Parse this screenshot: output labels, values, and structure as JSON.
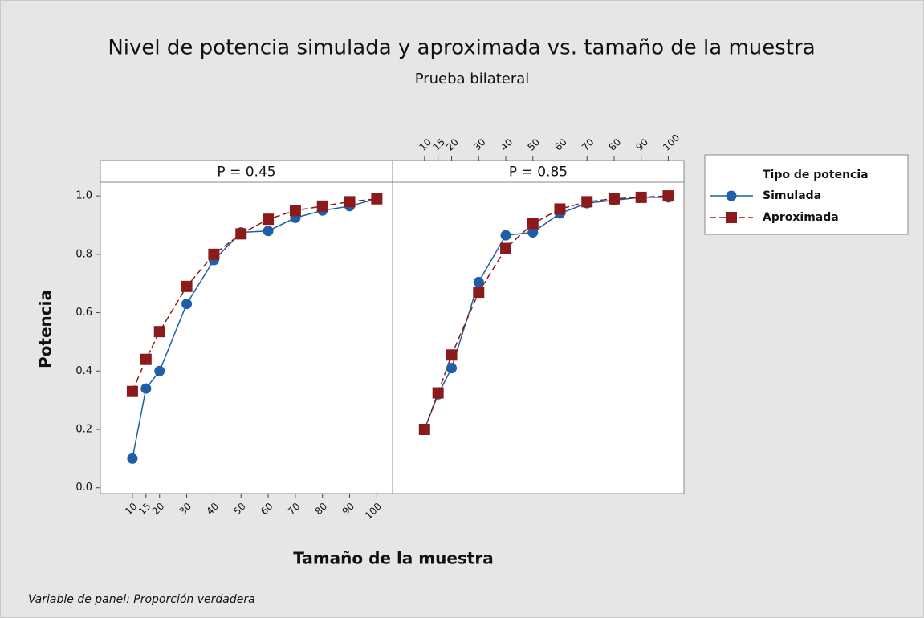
{
  "chart_data": {
    "type": "line",
    "title": "Nivel de potencia simulada y aproximada vs. tamaño de la muestra",
    "subtitle": "Prueba bilateral",
    "x_label": "Tamaño de la muestra",
    "y_label": "Potencia",
    "footnote": "Variable de panel: Proporción verdadera",
    "legend_title": "Tipo de potencia",
    "legend_position": "right",
    "panels": [
      "P = 0.45",
      "P = 0.85"
    ],
    "x": [
      10,
      15,
      20,
      30,
      40,
      50,
      60,
      70,
      80,
      90,
      100
    ],
    "xlim": [
      -1.8,
      105.8
    ],
    "xticks": [
      10,
      15,
      20,
      30,
      40,
      50,
      60,
      70,
      80,
      90,
      100
    ],
    "ylim": [
      -0.02,
      1.047
    ],
    "yticks": [
      {
        "value": 0,
        "label": "0.0"
      },
      0.2,
      0.4,
      0.6,
      0.8,
      {
        "value": 1,
        "label": "1.0"
      }
    ],
    "series": [
      {
        "name": "Simulada",
        "color": "#1f5fa8",
        "marker": "circle",
        "dashed": false,
        "values": [
          [
            0.1,
            0.34,
            0.4,
            0.63,
            0.78,
            0.875,
            0.88,
            0.925,
            0.95,
            0.965,
            0.99
          ],
          [
            0.2,
            0.32,
            0.41,
            0.705,
            0.865,
            0.875,
            0.94,
            0.975,
            0.985,
            0.995,
            0.995
          ]
        ]
      },
      {
        "name": "Aproximada",
        "color": "#8b1a1a",
        "marker": "square",
        "dashed": true,
        "values": [
          [
            0.33,
            0.44,
            0.535,
            0.69,
            0.8,
            0.87,
            0.92,
            0.95,
            0.965,
            0.98,
            0.99
          ],
          [
            0.2,
            0.325,
            0.455,
            0.67,
            0.82,
            0.905,
            0.955,
            0.98,
            0.99,
            0.995,
            1.0
          ]
        ]
      }
    ]
  }
}
